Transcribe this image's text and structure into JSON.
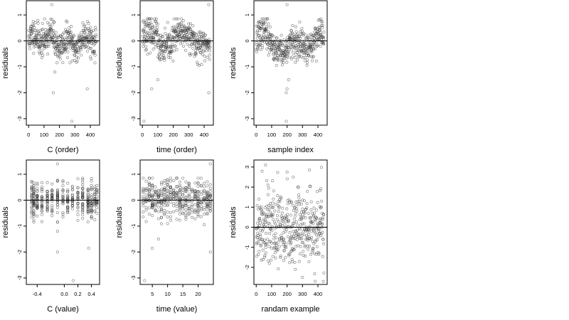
{
  "chart_data": [
    {
      "type": "scatter",
      "id": "c-order",
      "ylabel": "residuals",
      "xlabel": "C (order)",
      "xlim": [
        -15,
        460
      ],
      "ylim": [
        -3.25,
        1.55
      ],
      "xticks": [
        0,
        100,
        200,
        300,
        400
      ],
      "yticks": [
        1,
        0,
        -1,
        -2,
        -3
      ],
      "x": "index 0..439",
      "y": "profile A",
      "outliers": [
        [
          150,
          1.4
        ],
        [
          160,
          -2.0
        ],
        [
          280,
          -3.1
        ],
        [
          380,
          -1.85
        ],
        [
          170,
          -1.2
        ]
      ],
      "refline": 0
    },
    {
      "type": "scatter",
      "id": "time-order",
      "ylabel": "residuals",
      "xlabel": "time (order)",
      "xlim": [
        -15,
        460
      ],
      "ylim": [
        -3.25,
        1.55
      ],
      "xticks": [
        0,
        100,
        200,
        300,
        400
      ],
      "yticks": [
        1,
        0,
        -1,
        -2,
        -3
      ],
      "x": "index 0..439",
      "y": "profile B",
      "outliers": [
        [
          430,
          1.4
        ],
        [
          430,
          -2.0
        ],
        [
          10,
          -3.1
        ],
        [
          60,
          -1.85
        ],
        [
          100,
          -1.5
        ]
      ],
      "refline": 0
    },
    {
      "type": "scatter",
      "id": "sample-index",
      "ylabel": "residuals",
      "xlabel": "sample index",
      "xlim": [
        -15,
        460
      ],
      "ylim": [
        -3.25,
        1.55
      ],
      "xticks": [
        0,
        100,
        200,
        300,
        400
      ],
      "yticks": [
        1,
        0,
        -1,
        -2,
        -3
      ],
      "x": "index 0..439",
      "y": "profile C",
      "outliers": [
        [
          200,
          1.4
        ],
        [
          195,
          -2.0
        ],
        [
          195,
          -3.1
        ],
        [
          200,
          -1.85
        ],
        [
          210,
          -1.5
        ]
      ],
      "refline": 0
    },
    {
      "type": "scatter",
      "id": "c-value",
      "ylabel": "residuals",
      "xlabel": "C (value)",
      "xlim": [
        -0.56,
        0.52
      ],
      "ylim": [
        -3.25,
        1.55
      ],
      "xticks": [
        -0.4,
        0.0,
        0.2,
        0.4
      ],
      "xticklabels": [
        "-0.4",
        "0.0",
        "0.2",
        "0.4"
      ],
      "yticks": [
        1,
        0,
        -1,
        -2,
        -3
      ],
      "x": "discrete columns",
      "y": "profile A",
      "outliers": [
        [
          -0.1,
          1.4
        ],
        [
          -0.1,
          -2.0
        ],
        [
          0.13,
          -3.1
        ],
        [
          0.36,
          -1.85
        ],
        [
          -0.1,
          -1.2
        ]
      ],
      "refline": 0
    },
    {
      "type": "scatter",
      "id": "time-value",
      "ylabel": "residuals",
      "xlabel": "time (value)",
      "xlim": [
        1,
        25
      ],
      "ylim": [
        -3.25,
        1.55
      ],
      "xticks": [
        5,
        10,
        15,
        20
      ],
      "yticks": [
        1,
        0,
        -1,
        -2,
        -3
      ],
      "x": "discrete columns",
      "y": "profile B",
      "outliers": [
        [
          24,
          1.4
        ],
        [
          24,
          -2.0
        ],
        [
          2.5,
          -3.1
        ],
        [
          5,
          -1.85
        ],
        [
          7,
          -1.5
        ]
      ],
      "refline": 0
    },
    {
      "type": "scatter",
      "id": "random-example",
      "ylabel": "residuals",
      "xlabel": "randam example",
      "xlim": [
        -15,
        460
      ],
      "ylim": [
        -2.85,
        3.35
      ],
      "xticks": [
        0,
        100,
        200,
        300,
        400
      ],
      "yticks": [
        3,
        2,
        1,
        0,
        -1,
        -2
      ],
      "x": "index 0..439",
      "y": "normal(0,1)",
      "outliers": [
        [
          60,
          3.1
        ],
        [
          345,
          2.85
        ],
        [
          240,
          2.5
        ],
        [
          300,
          -2.5
        ]
      ],
      "refline": 0
    }
  ]
}
